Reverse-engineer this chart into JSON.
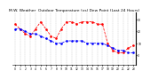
{
  "title": "M.W. Weather  Outdoor Temperature (vs) Dew Point (Last 24 Hours)",
  "temp_color": "#ff0000",
  "dew_color": "#0000ff",
  "bg_color": "#ffffff",
  "grid_color": "#888888",
  "temp_values": [
    26,
    22,
    18,
    16,
    22,
    28,
    22,
    16,
    14,
    22,
    28,
    28,
    26,
    28,
    28,
    28,
    26,
    26,
    10,
    4,
    2,
    2,
    6,
    8
  ],
  "dew_values": [
    22,
    22,
    20,
    18,
    18,
    16,
    14,
    12,
    10,
    10,
    12,
    12,
    12,
    12,
    10,
    10,
    10,
    10,
    8,
    6,
    4,
    4,
    2,
    2
  ],
  "ylim": [
    -8,
    36
  ],
  "ytick_values": [
    0,
    10,
    20,
    30
  ],
  "ytick_labels": [
    "0",
    "10",
    "20",
    "30"
  ],
  "n_points": 24,
  "title_fontsize": 3.2,
  "tick_fontsize": 2.2,
  "line_width": 0.55,
  "marker_size": 0.8,
  "marker": "s"
}
